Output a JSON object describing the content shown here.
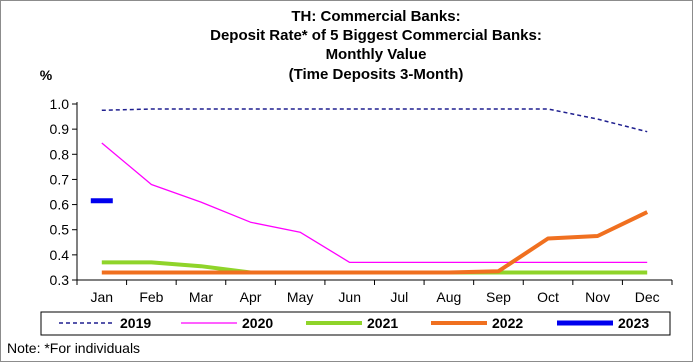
{
  "chart_data": {
    "type": "line",
    "title_lines": [
      "TH: Commercial Banks:",
      "Deposit Rate* of 5 Biggest Commercial Banks:",
      "Monthly Value",
      "(Time Deposits 3-Month)"
    ],
    "ylabel": "%",
    "xlabel": "",
    "categories": [
      "Jan",
      "Feb",
      "Mar",
      "Apr",
      "May",
      "Jun",
      "Jul",
      "Aug",
      "Sep",
      "Oct",
      "Nov",
      "Dec"
    ],
    "ylim": [
      0.3,
      1.0
    ],
    "yticks": [
      "1.0",
      "0.9",
      "0.8",
      "0.7",
      "0.6",
      "0.5",
      "0.4",
      "0.3"
    ],
    "grid": false,
    "legend_position": "bottom",
    "series": [
      {
        "name": "2019",
        "color": "#1f1f8f",
        "style": "dashed",
        "values": [
          0.975,
          0.98,
          0.98,
          0.98,
          0.98,
          0.98,
          0.98,
          0.98,
          0.98,
          0.98,
          0.94,
          0.89
        ]
      },
      {
        "name": "2020",
        "color": "#ff00ff",
        "style": "thin",
        "values": [
          0.845,
          0.68,
          0.61,
          0.53,
          0.49,
          0.37,
          0.37,
          0.37,
          0.37,
          0.37,
          0.37,
          0.37
        ]
      },
      {
        "name": "2021",
        "color": "#8fd42a",
        "style": "thick",
        "values": [
          0.37,
          0.37,
          0.355,
          0.33,
          0.33,
          0.33,
          0.33,
          0.33,
          0.33,
          0.33,
          0.33,
          0.33
        ]
      },
      {
        "name": "2022",
        "color": "#f07020",
        "style": "thick",
        "values": [
          0.33,
          0.33,
          0.33,
          0.33,
          0.33,
          0.33,
          0.33,
          0.33,
          0.335,
          0.465,
          0.475,
          0.57
        ]
      },
      {
        "name": "2023",
        "color": "#0000ee",
        "style": "thick",
        "values": [
          0.615,
          null,
          null,
          null,
          null,
          null,
          null,
          null,
          null,
          null,
          null,
          null
        ]
      }
    ]
  },
  "note": "Note: *For individuals"
}
